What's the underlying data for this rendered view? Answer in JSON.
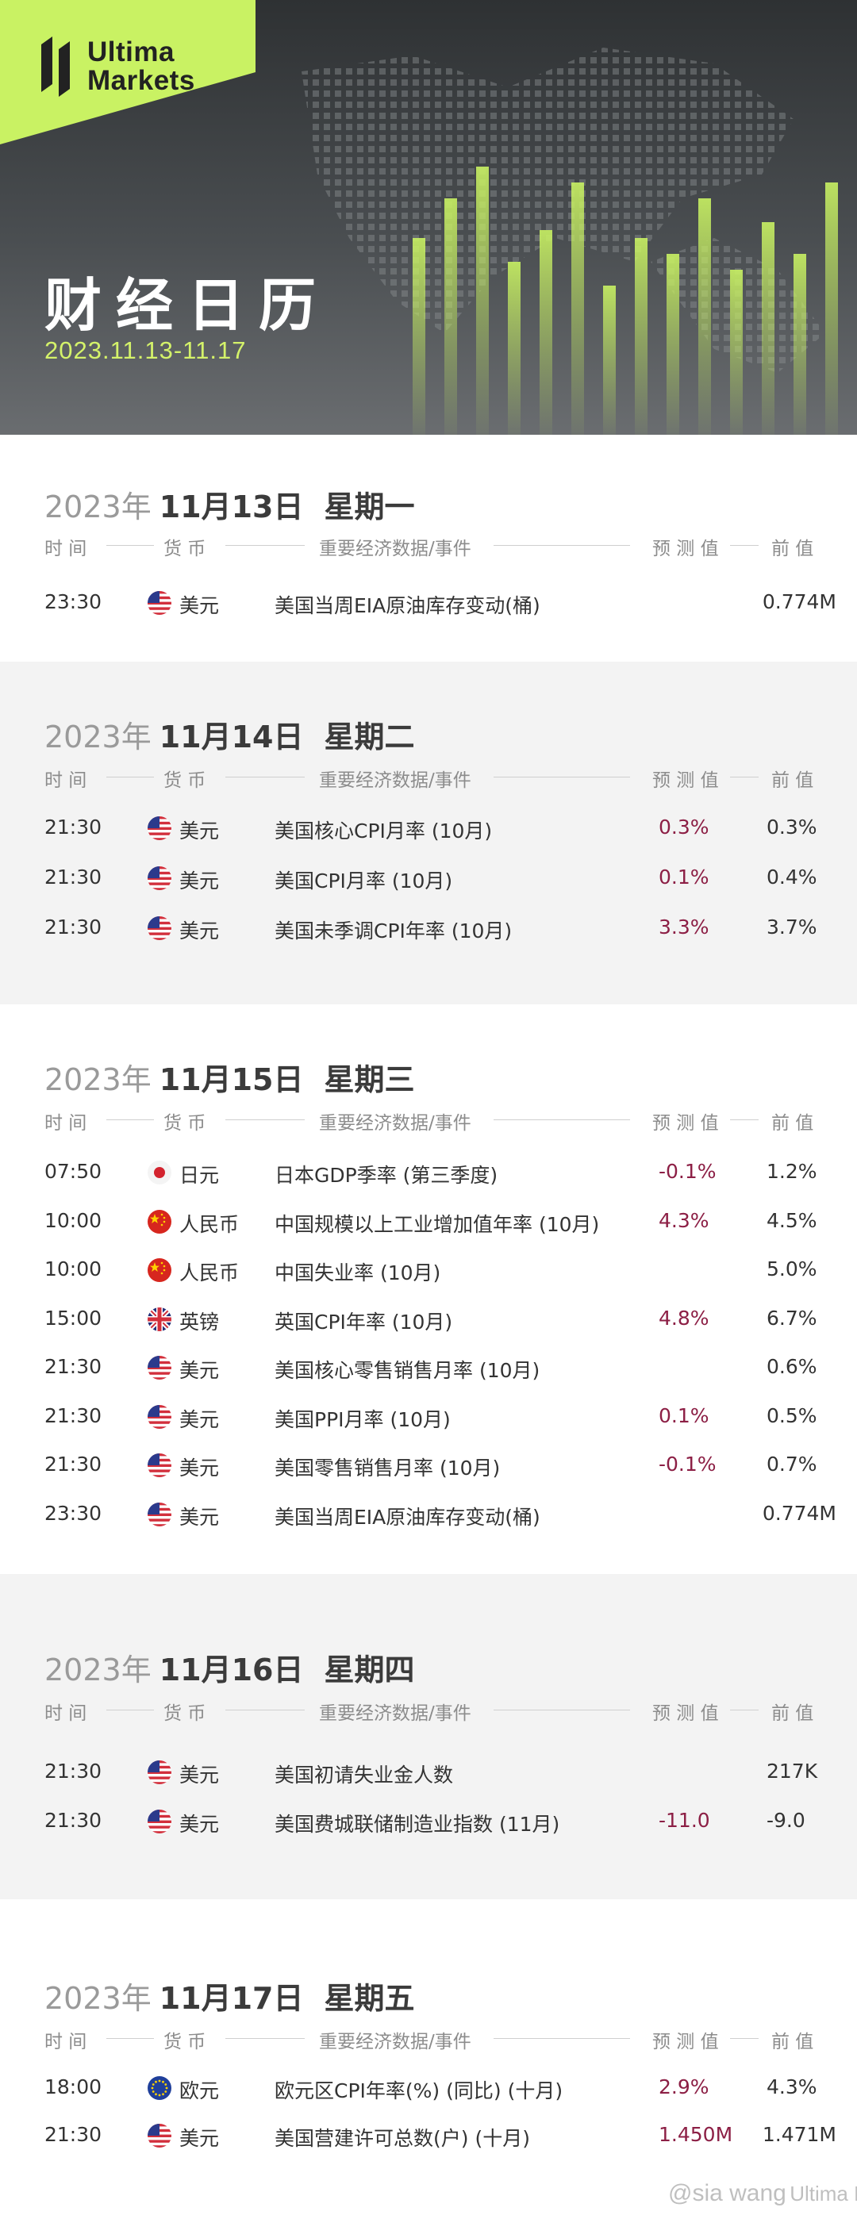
{
  "header": {
    "brand_line1": "Ultima",
    "brand_line2": "Markets",
    "title": "财经日历",
    "date_range": "2023.11.13-11.17"
  },
  "columns": {
    "time": "时 间",
    "currency": "货 币",
    "event": "重要经济数据/事件",
    "forecast": "预 测 值",
    "previous": "前 值"
  },
  "days": [
    {
      "year": "2023年",
      "date": "11月13日",
      "weekday": "星期一",
      "rows": [
        {
          "time": "23:30",
          "flag": "us",
          "currency": "美元",
          "event": "美国当周EIA原油库存变动(桶)",
          "forecast": "",
          "previous": "0.774M"
        }
      ]
    },
    {
      "year": "2023年",
      "date": "11月14日",
      "weekday": "星期二",
      "rows": [
        {
          "time": "21:30",
          "flag": "us",
          "currency": "美元",
          "event": "美国核心CPI月率 (10月)",
          "forecast": "0.3%",
          "previous": "0.3%"
        },
        {
          "time": "21:30",
          "flag": "us",
          "currency": "美元",
          "event": "美国CPI月率 (10月)",
          "forecast": "0.1%",
          "previous": "0.4%"
        },
        {
          "time": "21:30",
          "flag": "us",
          "currency": "美元",
          "event": "美国未季调CPI年率 (10月)",
          "forecast": "3.3%",
          "previous": "3.7%"
        }
      ]
    },
    {
      "year": "2023年",
      "date": "11月15日",
      "weekday": "星期三",
      "rows": [
        {
          "time": "07:50",
          "flag": "jp",
          "currency": "日元",
          "event": "日本GDP季率 (第三季度)",
          "forecast": "-0.1%",
          "previous": "1.2%"
        },
        {
          "time": "10:00",
          "flag": "cn",
          "currency": "人民币",
          "event": "中国规模以上工业增加值年率 (10月)",
          "forecast": "4.3%",
          "previous": "4.5%"
        },
        {
          "time": "10:00",
          "flag": "cn",
          "currency": "人民币",
          "event": "中国失业率 (10月)",
          "forecast": "",
          "previous": "5.0%"
        },
        {
          "time": "15:00",
          "flag": "uk",
          "currency": "英镑",
          "event": "英国CPI年率 (10月)",
          "forecast": "4.8%",
          "previous": "6.7%"
        },
        {
          "time": "21:30",
          "flag": "us",
          "currency": "美元",
          "event": "美国核心零售销售月率 (10月)",
          "forecast": "",
          "previous": "0.6%"
        },
        {
          "time": "21:30",
          "flag": "us",
          "currency": "美元",
          "event": "美国PPI月率 (10月)",
          "forecast": "0.1%",
          "previous": "0.5%"
        },
        {
          "time": "21:30",
          "flag": "us",
          "currency": "美元",
          "event": "美国零售销售月率 (10月)",
          "forecast": "-0.1%",
          "previous": "0.7%"
        },
        {
          "time": "23:30",
          "flag": "us",
          "currency": "美元",
          "event": "美国当周EIA原油库存变动(桶)",
          "forecast": "",
          "previous": "0.774M"
        }
      ]
    },
    {
      "year": "2023年",
      "date": "11月16日",
      "weekday": "星期四",
      "rows": [
        {
          "time": "21:30",
          "flag": "us",
          "currency": "美元",
          "event": "美国初请失业金人数",
          "forecast": "",
          "previous": "217K"
        },
        {
          "time": "21:30",
          "flag": "us",
          "currency": "美元",
          "event": "美国费城联储制造业指数 (11月)",
          "forecast": "-11.0",
          "previous": "-9.0"
        }
      ]
    },
    {
      "year": "2023年",
      "date": "11月17日",
      "weekday": "星期五",
      "rows": [
        {
          "time": "18:00",
          "flag": "eu",
          "currency": "欧元",
          "event": "欧元区CPI年率(%) (同比) (十月)",
          "forecast": "2.9%",
          "previous": "4.3%"
        },
        {
          "time": "21:30",
          "flag": "us",
          "currency": "美元",
          "event": "美国营建许可总数(户) (十月)",
          "forecast": "1.450M",
          "previous": "1.471M"
        }
      ]
    }
  ],
  "watermark": {
    "handle": "@sia wang",
    "brand": "Ultima Markets"
  },
  "colors": {
    "accent_green": "#c9f263",
    "forecast_red": "#8c1f45",
    "section_alt": "#f3f3f3"
  }
}
